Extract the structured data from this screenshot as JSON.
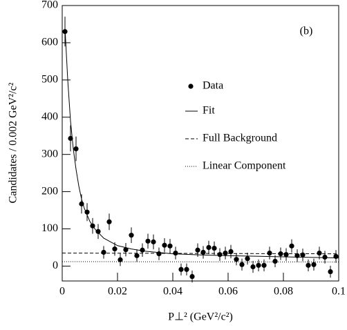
{
  "chart_data": {
    "type": "scatter",
    "annotation": "(b)",
    "x_label": "P⊥² (GeV²/c²)",
    "y_label": "Candidates / 0.002 GeV²/c²",
    "xlim": [
      0,
      0.1
    ],
    "ylim": [
      -40,
      700
    ],
    "xticks": [
      0,
      0.02,
      0.04,
      0.06,
      0.08,
      0.1
    ],
    "yticks": [
      0,
      100,
      200,
      300,
      400,
      500,
      600,
      700
    ],
    "legend": "center-right",
    "series": [
      {
        "name": "Data",
        "style": "points",
        "color": "#000000",
        "x": [
          0.001,
          0.003,
          0.005,
          0.007,
          0.009,
          0.011,
          0.013,
          0.015,
          0.017,
          0.019,
          0.021,
          0.023,
          0.025,
          0.027,
          0.029,
          0.031,
          0.033,
          0.035,
          0.037,
          0.039,
          0.041,
          0.043,
          0.045,
          0.047,
          0.049,
          0.051,
          0.053,
          0.055,
          0.057,
          0.059,
          0.061,
          0.063,
          0.065,
          0.067,
          0.069,
          0.071,
          0.073,
          0.075,
          0.077,
          0.079,
          0.081,
          0.083,
          0.085,
          0.087,
          0.089,
          0.091,
          0.093,
          0.095,
          0.097,
          0.099
        ],
        "values": [
          630,
          343,
          315,
          167,
          145,
          108,
          93,
          37,
          119,
          46,
          17,
          44,
          83,
          28,
          43,
          67,
          65,
          33,
          56,
          54,
          35,
          -9,
          -9,
          -28,
          43,
          37,
          50,
          48,
          31,
          35,
          39,
          18,
          4,
          20,
          -2,
          2,
          2,
          35,
          13,
          33,
          31,
          54,
          28,
          30,
          2,
          4,
          35,
          24,
          -15,
          26
        ],
        "errors": [
          40,
          35,
          33,
          26,
          24,
          21,
          20,
          17,
          22,
          18,
          17,
          18,
          21,
          17,
          18,
          20,
          20,
          17,
          19,
          19,
          17,
          16,
          16,
          16,
          18,
          17,
          18,
          18,
          17,
          17,
          18,
          16,
          16,
          16,
          16,
          16,
          16,
          17,
          16,
          17,
          17,
          18,
          17,
          17,
          16,
          16,
          17,
          17,
          16,
          17
        ]
      },
      {
        "name": "Fit",
        "style": "solid",
        "color": "#000000",
        "x": [
          0.001,
          0.002,
          0.003,
          0.004,
          0.005,
          0.006,
          0.007,
          0.008,
          0.01,
          0.012,
          0.015,
          0.02,
          0.025,
          0.03,
          0.04,
          0.05,
          0.06,
          0.08,
          0.1
        ],
        "values": [
          640,
          500,
          390,
          315,
          260,
          215,
          180,
          155,
          120,
          98,
          75,
          55,
          46,
          40,
          33,
          30,
          28,
          25,
          22
        ]
      },
      {
        "name": "Full Background",
        "style": "dashed",
        "color": "#000000",
        "x": [
          0,
          0.1
        ],
        "values": [
          35,
          33
        ]
      },
      {
        "name": "Linear Component",
        "style": "dotted",
        "color": "#000000",
        "x": [
          0,
          0.1
        ],
        "values": [
          12,
          11
        ]
      }
    ]
  }
}
